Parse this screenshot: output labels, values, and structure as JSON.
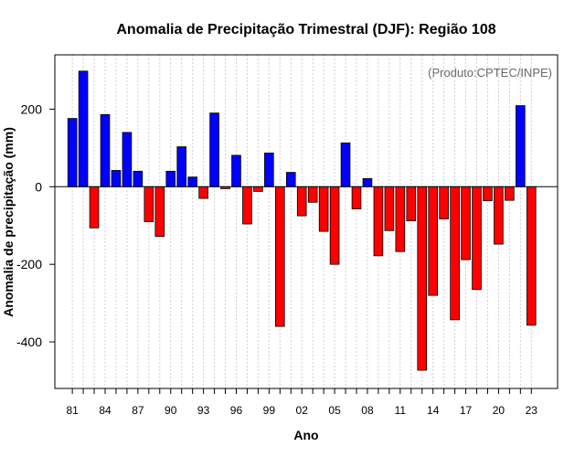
{
  "chart_data": {
    "type": "bar",
    "title": "Anomalia de Precipitação Trimestral (DJF): Região 108",
    "xlabel": "Ano",
    "ylabel": "Anomalia de precipitação (mm)",
    "annotation": "(Produto:CPTEC/INPE)",
    "years": [
      1981,
      1982,
      1983,
      1984,
      1985,
      1986,
      1987,
      1988,
      1989,
      1990,
      1991,
      1992,
      1993,
      1994,
      1995,
      1996,
      1997,
      1998,
      1999,
      2000,
      2001,
      2002,
      2003,
      2004,
      2005,
      2006,
      2007,
      2008,
      2009,
      2010,
      2011,
      2012,
      2013,
      2014,
      2015,
      2016,
      2017,
      2018,
      2019,
      2020,
      2021,
      2022,
      2023
    ],
    "values": [
      176,
      298,
      -106,
      186,
      42,
      140,
      40,
      -90,
      -128,
      40,
      103,
      25,
      -30,
      190,
      -5,
      81,
      -96,
      -12,
      87,
      -360,
      37,
      -75,
      -40,
      -115,
      -200,
      113,
      -57,
      21,
      -178,
      -113,
      -167,
      -88,
      -473,
      -280,
      -83,
      -343,
      -188,
      -265,
      -36,
      -148,
      -35,
      209,
      -357
    ],
    "xtick_labels": [
      "81",
      "84",
      "87",
      "90",
      "93",
      "96",
      "99",
      "02",
      "05",
      "08",
      "11",
      "14",
      "17",
      "20",
      "23"
    ],
    "xtick_years": [
      1981,
      1984,
      1987,
      1990,
      1993,
      1996,
      1999,
      2002,
      2005,
      2008,
      2011,
      2014,
      2017,
      2020,
      2023
    ],
    "ytick_values": [
      -400,
      -200,
      0,
      200
    ],
    "ytick_labels": [
      "-400",
      "-200",
      "0",
      "200"
    ],
    "ylim": [
      -520,
      340
    ],
    "xlim": [
      1979.4,
      2025.4
    ],
    "grid": true,
    "colors": {
      "positive": "#0000ff",
      "negative": "#ff0000",
      "bar_edge": "#000000",
      "grid": "#d0d0d0",
      "annotation": "#666666"
    }
  }
}
